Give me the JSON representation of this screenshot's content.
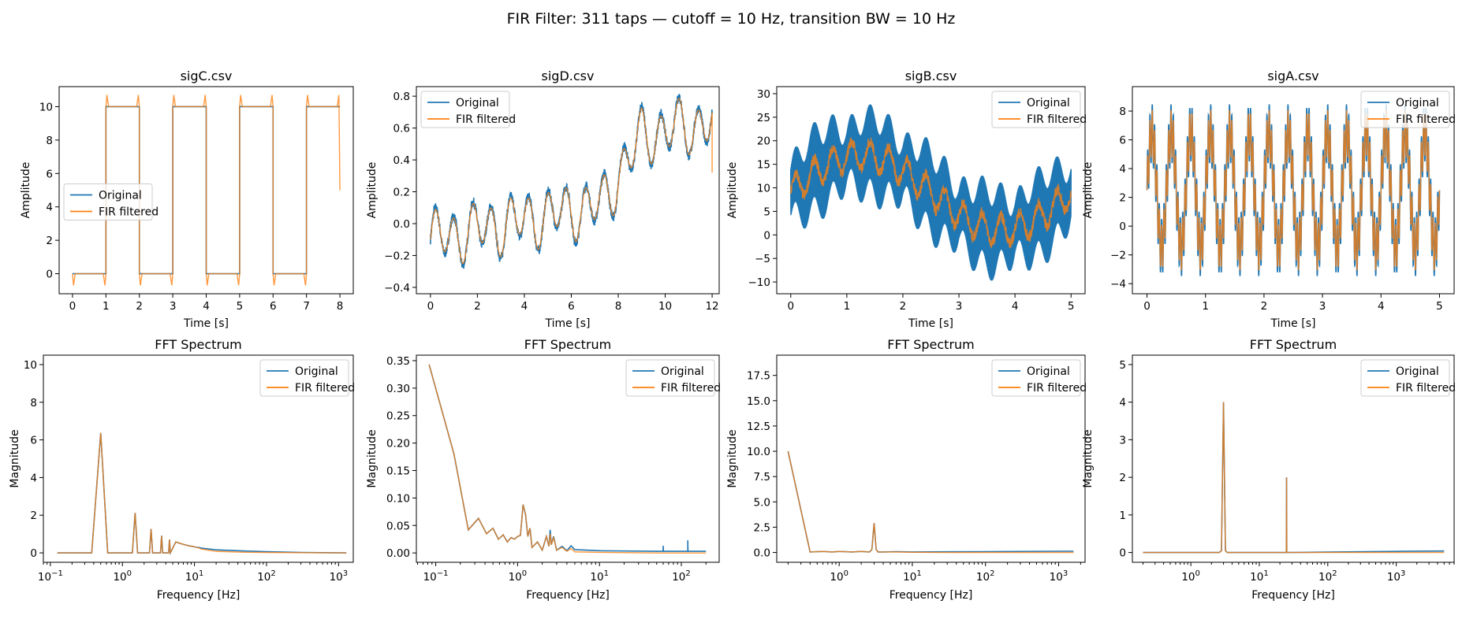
{
  "figure": {
    "suptitle": "FIR Filter: 311 taps — cutoff = 10 Hz, transition BW = 10 Hz"
  },
  "colors": {
    "original": "#1f77b4",
    "filtered": "#ff7f0e",
    "overlap": "#c2803f"
  },
  "legend": {
    "original": "Original",
    "filtered": "FIR filtered"
  },
  "chart_data": [
    {
      "panel": "time-sigC",
      "type": "line",
      "title": "sigC.csv",
      "xlabel": "Time [s]",
      "ylabel": "Amplitude",
      "xlim": [
        -0.4,
        8.4
      ],
      "ylim": [
        -1.2,
        11.2
      ],
      "xticks": [
        0,
        1,
        2,
        3,
        4,
        5,
        6,
        7,
        8
      ],
      "yticks": [
        0,
        2,
        4,
        6,
        8,
        10
      ],
      "legend_position": "center-left",
      "series": [
        {
          "name": "Original",
          "kind": "square",
          "low": 0,
          "high": 10,
          "period": 2,
          "t_end": 8
        },
        {
          "name": "FIR filtered",
          "kind": "square-ringing",
          "low": 0,
          "high": 10,
          "overshoot": 0.7,
          "end_value": 5
        }
      ]
    },
    {
      "panel": "time-sigD",
      "type": "line",
      "title": "sigD.csv",
      "xlabel": "Time [s]",
      "ylabel": "Amplitude",
      "xlim": [
        -0.6,
        12.3
      ],
      "ylim": [
        -0.44,
        0.86
      ],
      "xticks": [
        0,
        2,
        4,
        6,
        8,
        10,
        12
      ],
      "yticks": [
        -0.4,
        -0.2,
        0.0,
        0.2,
        0.4,
        0.6,
        0.8
      ],
      "legend_position": "top-left",
      "series": [
        {
          "name": "Original",
          "kind": "trend-oscillation",
          "t_end": 12,
          "trend_start": -0.1,
          "step_at": 7.3,
          "trend_end": 0.55,
          "osc_amp": 0.15,
          "osc_hz": 1.25,
          "noise": 0.03
        },
        {
          "name": "FIR filtered",
          "kind": "trend-oscillation",
          "t_end": 12,
          "trend_start": -0.1,
          "step_at": 7.3,
          "trend_end": 0.55,
          "osc_amp": 0.14,
          "osc_hz": 1.25,
          "end_value": 0.32
        }
      ]
    },
    {
      "panel": "time-sigB",
      "type": "line",
      "title": "sigB.csv",
      "xlabel": "Time [s]",
      "ylabel": "Amplitude",
      "xlim": [
        -0.25,
        5.25
      ],
      "ylim": [
        -12.5,
        31.5
      ],
      "xticks": [
        0,
        1,
        2,
        3,
        4,
        5
      ],
      "yticks": [
        -10,
        -5,
        0,
        5,
        10,
        15,
        20,
        25,
        30
      ],
      "legend_position": "top-right",
      "series": [
        {
          "name": "Original",
          "kind": "band",
          "t_end": 5,
          "center": "10 + 8*sin(2*pi*0.2*t)",
          "half_width": 9,
          "osc_hz": 3
        },
        {
          "name": "FIR filtered",
          "kind": "center-line",
          "t_end": 5,
          "center": "10 + 8*sin(2*pi*0.2*t)",
          "osc_amp": 3,
          "osc_hz": 3
        }
      ]
    },
    {
      "panel": "time-sigA",
      "type": "line",
      "title": "sigA.csv",
      "xlabel": "Time [s]",
      "ylabel": "Amplitude",
      "xlim": [
        -0.25,
        5.25
      ],
      "ylim": [
        -4.7,
        9.7
      ],
      "xticks": [
        0,
        1,
        2,
        3,
        4,
        5
      ],
      "yticks": [
        -4,
        -2,
        0,
        2,
        4,
        6,
        8
      ],
      "legend_position": "top-right",
      "series": [
        {
          "name": "Original",
          "kind": "two-tone",
          "t_end": 5,
          "offset": 2.5,
          "amp1": 4,
          "hz1": 3,
          "amp2": 2,
          "hz2": 25,
          "max": 9,
          "min": -4
        },
        {
          "name": "FIR filtered",
          "kind": "two-tone",
          "t_end": 5,
          "offset": 2.5,
          "amp1": 4,
          "hz1": 3,
          "amp2": 1.6,
          "hz2": 25
        }
      ]
    },
    {
      "panel": "fft-sigC",
      "type": "line",
      "title": "FFT Spectrum",
      "xlabel": "Frequency [Hz]",
      "ylabel": "Magnitude",
      "xscale": "log",
      "xlim": [
        0.08,
        1600
      ],
      "ylim": [
        -0.5,
        10.5
      ],
      "xticks": [
        0.1,
        1,
        10,
        100,
        1000
      ],
      "xtick_labels": [
        "10^-1",
        "10^0",
        "10^1",
        "10^2",
        "10^3"
      ],
      "yticks": [
        0,
        2,
        4,
        6,
        8,
        10
      ],
      "legend_position": "top-right",
      "series": [
        {
          "name": "Original",
          "x": [
            0.125,
            0.375,
            0.5,
            0.625,
            1.375,
            1.5,
            1.625,
            2.375,
            2.5,
            2.625,
            3.375,
            3.5,
            3.625,
            4.375,
            4.5,
            4.625,
            5.5,
            6.5,
            7.5,
            8.5,
            9.5,
            10.5,
            11.5,
            12.5,
            20,
            50,
            100,
            300,
            1280
          ],
          "y": [
            0,
            0,
            6.37,
            0,
            0,
            2.12,
            0,
            0,
            1.27,
            0,
            0,
            0.91,
            0,
            0,
            0.71,
            0,
            0.58,
            0.49,
            0.42,
            0.37,
            0.34,
            0.3,
            0.28,
            0.25,
            0.16,
            0.1,
            0.06,
            0.02,
            0.0
          ]
        },
        {
          "name": "FIR filtered",
          "x": [
            0.125,
            0.375,
            0.5,
            0.625,
            1.375,
            1.5,
            1.625,
            2.375,
            2.5,
            2.625,
            3.375,
            3.5,
            3.625,
            4.375,
            4.5,
            4.625,
            5.5,
            6.5,
            7.5,
            8.5,
            9.5,
            10.5,
            11.5,
            12.5,
            20,
            50,
            100,
            300,
            1280
          ],
          "y": [
            0,
            0,
            6.37,
            0,
            0,
            2.12,
            0,
            0,
            1.27,
            0,
            0,
            0.91,
            0,
            0,
            0.71,
            0,
            0.58,
            0.49,
            0.42,
            0.37,
            0.34,
            0.3,
            0.26,
            0.2,
            0.08,
            0.03,
            0.02,
            0.01,
            0.0
          ]
        }
      ]
    },
    {
      "panel": "fft-sigD",
      "type": "line",
      "title": "FFT Spectrum",
      "xlabel": "Frequency [Hz]",
      "ylabel": "Magnitude",
      "xscale": "log",
      "xlim": [
        0.058,
        290
      ],
      "ylim": [
        -0.017,
        0.36
      ],
      "xticks": [
        0.1,
        1,
        10,
        100
      ],
      "xtick_labels": [
        "10^-1",
        "10^0",
        "10^1",
        "10^2"
      ],
      "yticks": [
        0,
        0.05,
        0.1,
        0.15,
        0.2,
        0.25,
        0.3,
        0.35
      ],
      "legend_position": "top-right",
      "series": [
        {
          "name": "Original",
          "x": [
            0.083,
            0.083,
            0.167,
            0.25,
            0.333,
            0.417,
            0.5,
            0.583,
            0.667,
            0.75,
            0.833,
            0.917,
            1.0,
            1.083,
            1.167,
            1.25,
            1.333,
            1.417,
            1.5,
            1.75,
            2.0,
            2.25,
            2.417,
            2.5,
            2.583,
            2.75,
            3.0,
            3.5,
            4.0,
            4.5,
            5,
            10,
            50,
            60,
            60,
            60.5,
            100,
            120,
            120,
            120.5,
            200
          ],
          "y": [
            0.343,
            0.343,
            0.18,
            0.042,
            0.063,
            0.035,
            0.045,
            0.025,
            0.033,
            0.02,
            0.028,
            0.025,
            0.03,
            0.032,
            0.088,
            0.07,
            0.03,
            0.045,
            0.01,
            0.02,
            0.005,
            0.03,
            0.012,
            0.042,
            0.015,
            0.03,
            0.005,
            0.012,
            0.004,
            0.013,
            0.006,
            0.004,
            0.003,
            0.003,
            0.013,
            0.003,
            0.003,
            0.003,
            0.023,
            0.003,
            0.003
          ]
        },
        {
          "name": "FIR filtered",
          "x": [
            0.083,
            0.083,
            0.167,
            0.25,
            0.333,
            0.417,
            0.5,
            0.583,
            0.667,
            0.75,
            0.833,
            0.917,
            1.0,
            1.083,
            1.167,
            1.25,
            1.333,
            1.417,
            1.5,
            1.75,
            2.0,
            2.25,
            2.417,
            2.5,
            2.583,
            2.75,
            3.0,
            3.5,
            4.0,
            4.5,
            5,
            10,
            50,
            200
          ],
          "y": [
            0.343,
            0.343,
            0.18,
            0.042,
            0.063,
            0.035,
            0.045,
            0.025,
            0.033,
            0.02,
            0.028,
            0.025,
            0.03,
            0.032,
            0.088,
            0.07,
            0.03,
            0.045,
            0.01,
            0.02,
            0.005,
            0.03,
            0.012,
            0.035,
            0.015,
            0.028,
            0.005,
            0.01,
            0.003,
            0.008,
            0.002,
            0.001,
            0.0,
            0.0
          ]
        }
      ]
    },
    {
      "panel": "fft-sigB",
      "type": "line",
      "title": "FFT Spectrum",
      "xlabel": "Frequency [Hz]",
      "ylabel": "Magnitude",
      "xscale": "log",
      "xlim": [
        0.14,
        2300
      ],
      "ylim": [
        -0.97,
        19.5
      ],
      "xticks": [
        1,
        10,
        100,
        1000
      ],
      "xtick_labels": [
        "10^0",
        "10^1",
        "10^2",
        "10^3"
      ],
      "yticks": [
        0,
        2.5,
        5,
        7.5,
        10,
        12.5,
        15,
        17.5
      ],
      "legend_position": "top-right",
      "series": [
        {
          "name": "Original",
          "x": [
            0.2,
            0.2,
            0.4,
            0.6,
            0.8,
            1.0,
            1.5,
            2.0,
            2.6,
            2.8,
            3.0,
            3.2,
            3.4,
            4,
            6,
            10,
            30,
            100,
            300,
            1000,
            1600
          ],
          "y": [
            10,
            10,
            0.05,
            0.1,
            0.05,
            0.1,
            0.05,
            0.1,
            0.05,
            0.3,
            2.9,
            0.3,
            0.05,
            0.05,
            0.08,
            0.05,
            0.07,
            0.08,
            0.1,
            0.12,
            0.12
          ]
        },
        {
          "name": "FIR filtered",
          "x": [
            0.2,
            0.2,
            0.4,
            0.6,
            0.8,
            1.0,
            1.5,
            2.0,
            2.6,
            2.8,
            3.0,
            3.2,
            3.4,
            4,
            6,
            10,
            30,
            1600
          ],
          "y": [
            10,
            10,
            0.05,
            0.1,
            0.05,
            0.1,
            0.05,
            0.1,
            0.05,
            0.3,
            2.9,
            0.3,
            0.05,
            0.05,
            0.05,
            0.02,
            0.0,
            0.0
          ]
        }
      ]
    },
    {
      "panel": "fft-sigA",
      "type": "line",
      "title": "FFT Spectrum",
      "xlabel": "Frequency [Hz]",
      "ylabel": "Magnitude",
      "xscale": "log",
      "xlim": [
        0.14,
        7000
      ],
      "ylim": [
        -0.26,
        5.25
      ],
      "xticks": [
        1,
        10,
        100,
        1000
      ],
      "xtick_labels": [
        "10^0",
        "10^1",
        "10^2",
        "10^3"
      ],
      "yticks": [
        0,
        1,
        2,
        3,
        4,
        5
      ],
      "legend_position": "top-right",
      "series": [
        {
          "name": "Original",
          "x": [
            0.2,
            2.6,
            2.8,
            3.0,
            3.2,
            3.4,
            24.6,
            24.8,
            25.0,
            25.2,
            25.4,
            100,
            1000,
            5000
          ],
          "y": [
            0,
            0,
            0.05,
            4.0,
            0.05,
            0,
            0,
            0.03,
            2.0,
            0.03,
            0,
            0.01,
            0.03,
            0.04
          ]
        },
        {
          "name": "FIR filtered",
          "x": [
            0.2,
            2.6,
            2.8,
            3.0,
            3.2,
            3.4,
            24.6,
            24.8,
            25.0,
            25.2,
            25.4,
            100,
            5000
          ],
          "y": [
            0,
            0,
            0.05,
            4.0,
            0.05,
            0,
            0,
            0.03,
            2.0,
            0.03,
            0,
            0.0,
            0.0
          ]
        }
      ]
    }
  ]
}
